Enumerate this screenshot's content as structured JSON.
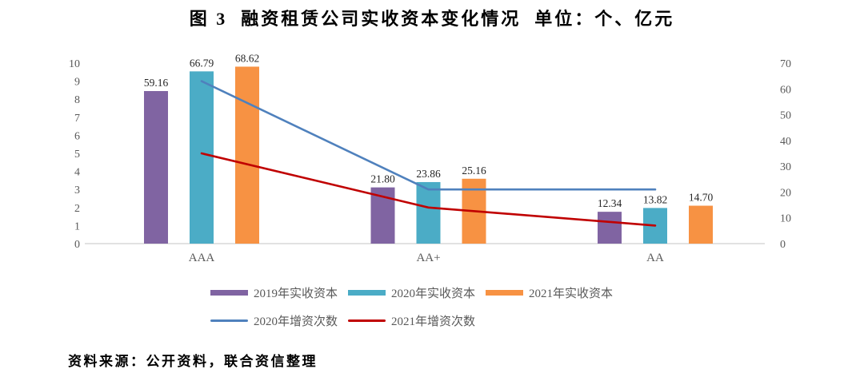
{
  "title": "图 3  融资租赁公司实收资本变化情况  单位：个、亿元",
  "footer": "资料来源：公开资料，联合资信整理",
  "chart_data": {
    "type": "bar",
    "subtype": "grouped-bar-with-lines-combo",
    "categories": [
      "AAA",
      "AA+",
      "AA"
    ],
    "series": [
      {
        "kind": "bar",
        "name": "2019年实收资本",
        "axis": "right",
        "color": "#8064A2",
        "values": [
          59.16,
          21.8,
          12.34
        ]
      },
      {
        "kind": "bar",
        "name": "2020年实收资本",
        "axis": "right",
        "color": "#4BACC6",
        "values": [
          66.79,
          23.86,
          13.82
        ]
      },
      {
        "kind": "bar",
        "name": "2021年实收资本",
        "axis": "right",
        "color": "#F79243",
        "values": [
          68.62,
          25.16,
          14.7
        ]
      },
      {
        "kind": "line",
        "name": "2020年增资次数",
        "axis": "left",
        "color": "#4F81BD",
        "values": [
          9,
          3,
          3
        ]
      },
      {
        "kind": "line",
        "name": "2021年增资次数",
        "axis": "left",
        "color": "#C00000",
        "values": [
          5,
          2,
          1
        ]
      }
    ],
    "left_axis": {
      "unit": "个",
      "min": 0,
      "max": 10,
      "ticks": [
        0,
        1,
        2,
        3,
        4,
        5,
        6,
        7,
        8,
        9,
        10
      ]
    },
    "right_axis": {
      "unit": "亿元",
      "min": 0,
      "max": 70,
      "ticks": [
        0,
        10,
        20,
        30,
        40,
        50,
        60,
        70
      ]
    },
    "data_labels_decimals": 2,
    "grid": false,
    "legend_position": "bottom",
    "axis_line_color": "#D9D9D9"
  }
}
